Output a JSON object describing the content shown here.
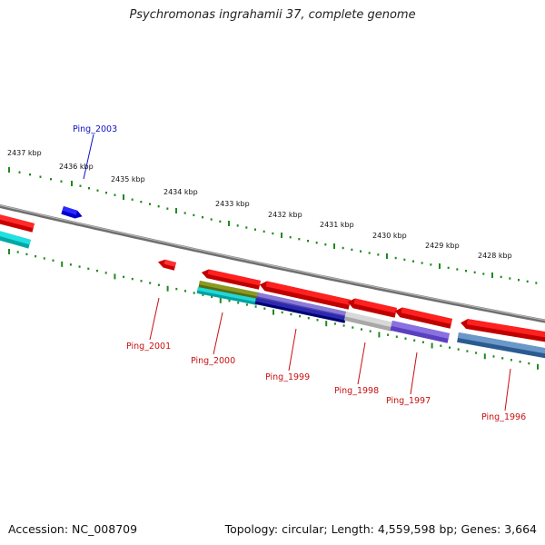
{
  "title": "Psychromonas ingrahamii 37, complete genome",
  "footer": {
    "accession": "Accession: NC_008709",
    "summary": "Topology: circular; Length: 4,559,598 bp; Genes: 3,664"
  },
  "colors": {
    "backbone": "#7a7a7a",
    "ticks": "#1f8a1f",
    "forward_label": "#1010c8",
    "reverse_label": "#c81010"
  },
  "scale_labels": [
    "2437 kbp",
    "2436 kbp",
    "2435 kbp",
    "2434 kbp",
    "2433 kbp",
    "2432 kbp",
    "2431 kbp",
    "2430 kbp",
    "2429 kbp",
    "2428 kbp"
  ],
  "gene_labels": [
    {
      "text": "Ping_2003",
      "strand": "forward"
    },
    {
      "text": "Ping_2001",
      "strand": "reverse"
    },
    {
      "text": "Ping_2000",
      "strand": "reverse"
    },
    {
      "text": "Ping_1999",
      "strand": "reverse"
    },
    {
      "text": "Ping_1998",
      "strand": "reverse"
    },
    {
      "text": "Ping_1997",
      "strand": "reverse"
    },
    {
      "text": "Ping_1996",
      "strand": "reverse"
    }
  ]
}
